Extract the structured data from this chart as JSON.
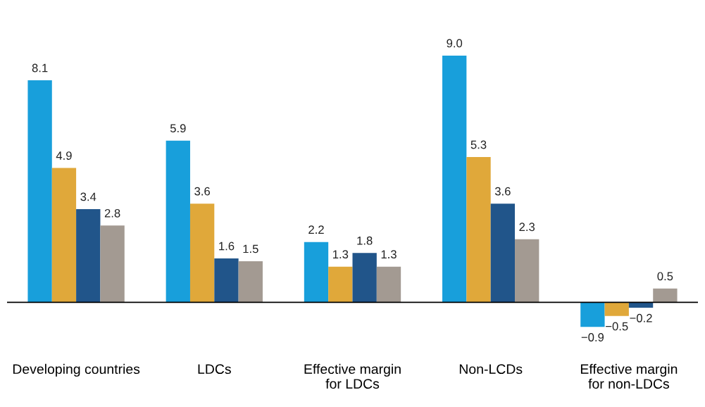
{
  "chart_data": {
    "type": "bar",
    "categories": [
      "Developing countries",
      "LDCs",
      "Effective margin\nfor LDCs",
      "Non-LCDs",
      "Effective margin\nfor non-LDCs"
    ],
    "series": [
      {
        "color": "#189fdb",
        "values": [
          8.1,
          5.9,
          2.2,
          9.0,
          -0.9
        ],
        "value_labels": [
          "8.1",
          "5.9",
          "2.2",
          "9.0",
          "−0.9"
        ]
      },
      {
        "color": "#e0a83a",
        "values": [
          4.9,
          3.6,
          1.3,
          5.3,
          -0.5
        ],
        "value_labels": [
          "4.9",
          "3.6",
          "1.3",
          "5.3",
          "−0.5"
        ]
      },
      {
        "color": "#21558a",
        "values": [
          3.4,
          1.6,
          1.8,
          3.6,
          -0.2
        ],
        "value_labels": [
          "3.4",
          "1.6",
          "1.8",
          "3.6",
          "−0.2"
        ]
      },
      {
        "color": "#a39a92",
        "values": [
          2.8,
          1.5,
          1.3,
          2.3,
          0.5
        ],
        "value_labels": [
          "2.8",
          "1.5",
          "1.3",
          "2.3",
          "0.5"
        ]
      }
    ],
    "grid": false,
    "legend": false
  }
}
